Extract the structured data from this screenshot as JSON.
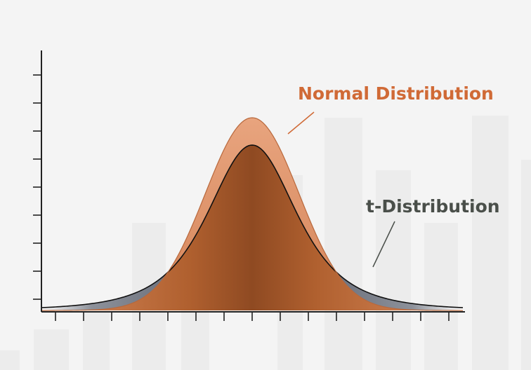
{
  "chart_data": {
    "type": "area",
    "title": "",
    "xlabel": "",
    "ylabel": "",
    "grid": false,
    "x_range": [
      -4.5,
      4.5
    ],
    "y_range": [
      0,
      0.45
    ],
    "series": [
      {
        "name": "Normal Distribution",
        "distribution": "standard normal",
        "x": [
          -4.5,
          -4,
          -3.5,
          -3,
          -2.5,
          -2,
          -1.5,
          -1,
          -0.5,
          0,
          0.5,
          1,
          1.5,
          2,
          2.5,
          3,
          3.5,
          4,
          4.5
        ],
        "y": [
          0.0,
          0.0001,
          0.0009,
          0.0044,
          0.0175,
          0.054,
          0.1295,
          0.242,
          0.3521,
          0.3989,
          0.3521,
          0.242,
          0.1295,
          0.054,
          0.0175,
          0.0044,
          0.0009,
          0.0001,
          0.0
        ],
        "color": "#c86a3c"
      },
      {
        "name": "t-Distribution",
        "distribution": "Student t, df = 3",
        "x": [
          -4.5,
          -4,
          -3.5,
          -3,
          -2.5,
          -2,
          -1.5,
          -1,
          -0.5,
          0,
          0.5,
          1,
          1.5,
          2,
          2.5,
          3,
          3.5,
          4,
          4.5
        ],
        "y": [
          0.0067,
          0.0092,
          0.0133,
          0.0199,
          0.0325,
          0.0675,
          0.1244,
          0.207,
          0.3022,
          0.3676,
          0.3022,
          0.207,
          0.1244,
          0.0675,
          0.0325,
          0.0199,
          0.0133,
          0.0092,
          0.0067
        ],
        "color": "#5c6370"
      }
    ],
    "annotations": [
      {
        "text": "Normal Distribution",
        "series": 0,
        "color": "#d06a36"
      },
      {
        "text": "t-Distribution",
        "series": 1,
        "color": "#4a4f4a"
      }
    ],
    "axis_color": "#222222",
    "background_color": "#f4f4f4",
    "decorative_bars_color": "#ececec",
    "x_tick_count": 15,
    "y_tick_count": 9
  }
}
